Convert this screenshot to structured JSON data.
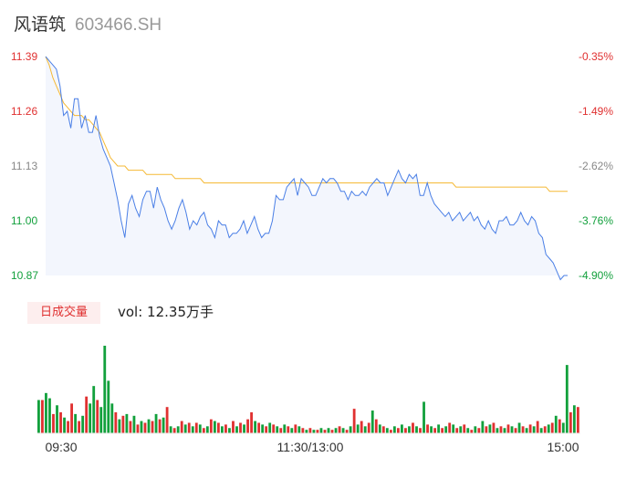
{
  "stock": {
    "name": "风语筑",
    "code": "603466.SH"
  },
  "volume_panel": {
    "tab_label": "日成交量",
    "vol_text": "vol: 12.35万手"
  },
  "colors": {
    "price_line": "#4a7fe6",
    "avg_line": "#f5b935",
    "up": "#e03030",
    "down": "#12a03c",
    "fill": "#f3f6fd"
  },
  "chart_data": [
    {
      "type": "line",
      "title": "",
      "y_ticks_left": [
        "11.39",
        "11.26",
        "11.13",
        "11.00",
        "10.87"
      ],
      "y_ticks_right": [
        "-0.35%",
        "-1.49%",
        "-2.62%",
        "-3.76%",
        "-4.90%"
      ],
      "x_ticks": [
        "09:30",
        "11:30/13:00",
        "15:00"
      ],
      "ylim": [
        10.87,
        11.39
      ],
      "grid": false,
      "series": [
        {
          "values": [
            11.39,
            11.38,
            11.37,
            11.36,
            11.32,
            11.25,
            11.26,
            11.22,
            11.29,
            11.29,
            11.22,
            11.25,
            11.21,
            11.21,
            11.25,
            11.2,
            11.17,
            11.15,
            11.13,
            11.09,
            11.05,
            11.0,
            10.96,
            11.04,
            11.06,
            11.03,
            11.01,
            11.05,
            11.07,
            11.07,
            11.03,
            11.08,
            11.05,
            11.03,
            11.0,
            10.98,
            11.0,
            11.03,
            11.05,
            11.02,
            10.98,
            11.0,
            10.99,
            11.01,
            11.02,
            10.99,
            10.98,
            10.96,
            11.0,
            10.99,
            10.99,
            10.96,
            10.97,
            10.97,
            10.98,
            11.0,
            10.97,
            10.99,
            11.01,
            10.98,
            10.96,
            10.97,
            10.97,
            11.0,
            11.06,
            11.05,
            11.05,
            11.08,
            11.09,
            11.1,
            11.06,
            11.1,
            11.09,
            11.08,
            11.06,
            11.06,
            11.08,
            11.1,
            11.09,
            11.1,
            11.1,
            11.09,
            11.07,
            11.07,
            11.05,
            11.07,
            11.06,
            11.06,
            11.07,
            11.06,
            11.08,
            11.09,
            11.1,
            11.09,
            11.09,
            11.06,
            11.08,
            11.1,
            11.12,
            11.1,
            11.09,
            11.11,
            11.1,
            11.11,
            11.06,
            11.06,
            11.09,
            11.06,
            11.04,
            11.03,
            11.02,
            11.01,
            11.02,
            11.0,
            11.01,
            11.02,
            11.0,
            11.01,
            11.02,
            11.0,
            11.01,
            10.99,
            10.98,
            11.0,
            10.98,
            10.97,
            11.0,
            11.0,
            11.01,
            10.99,
            10.99,
            11.0,
            11.02,
            11.0,
            10.99,
            11.01,
            11.0,
            10.97,
            10.96,
            10.92,
            10.91,
            10.9,
            10.88,
            10.86,
            10.87,
            10.87
          ]
        },
        {
          "values": [
            11.39,
            11.37,
            11.34,
            11.32,
            11.3,
            11.28,
            11.27,
            11.26,
            11.25,
            11.25,
            11.25,
            11.24,
            11.24,
            11.23,
            11.22,
            11.21,
            11.19,
            11.17,
            11.15,
            11.14,
            11.13,
            11.13,
            11.13,
            11.12,
            11.12,
            11.12,
            11.12,
            11.12,
            11.11,
            11.11,
            11.11,
            11.11,
            11.11,
            11.11,
            11.11,
            11.11,
            11.1,
            11.1,
            11.1,
            11.1,
            11.1,
            11.1,
            11.1,
            11.1,
            11.09,
            11.09,
            11.09,
            11.09,
            11.09,
            11.09,
            11.09,
            11.09,
            11.09,
            11.09,
            11.09,
            11.09,
            11.09,
            11.09,
            11.09,
            11.09,
            11.09,
            11.09,
            11.09,
            11.09,
            11.09,
            11.09,
            11.09,
            11.09,
            11.09,
            11.09,
            11.09,
            11.09,
            11.09,
            11.09,
            11.09,
            11.09,
            11.09,
            11.09,
            11.09,
            11.09,
            11.09,
            11.09,
            11.09,
            11.09,
            11.09,
            11.09,
            11.09,
            11.09,
            11.09,
            11.09,
            11.09,
            11.09,
            11.09,
            11.09,
            11.09,
            11.09,
            11.09,
            11.09,
            11.09,
            11.09,
            11.09,
            11.09,
            11.09,
            11.09,
            11.09,
            11.09,
            11.09,
            11.09,
            11.09,
            11.09,
            11.09,
            11.09,
            11.09,
            11.09,
            11.08,
            11.08,
            11.08,
            11.08,
            11.08,
            11.08,
            11.08,
            11.08,
            11.08,
            11.08,
            11.08,
            11.08,
            11.08,
            11.08,
            11.08,
            11.08,
            11.08,
            11.08,
            11.08,
            11.08,
            11.08,
            11.08,
            11.08,
            11.08,
            11.08,
            11.08,
            11.07,
            11.07,
            11.07,
            11.07,
            11.07,
            11.07
          ]
        }
      ]
    },
    {
      "type": "bar",
      "title": "",
      "ylim": [
        0,
        100
      ],
      "bars": [
        {
          "v": 38,
          "up": false
        },
        {
          "v": 38,
          "up": true
        },
        {
          "v": 46,
          "up": false
        },
        {
          "v": 40,
          "up": false
        },
        {
          "v": 22,
          "up": true
        },
        {
          "v": 32,
          "up": false
        },
        {
          "v": 24,
          "up": true
        },
        {
          "v": 18,
          "up": false
        },
        {
          "v": 14,
          "up": true
        },
        {
          "v": 34,
          "up": true
        },
        {
          "v": 22,
          "up": false
        },
        {
          "v": 14,
          "up": true
        },
        {
          "v": 20,
          "up": false
        },
        {
          "v": 42,
          "up": true
        },
        {
          "v": 34,
          "up": false
        },
        {
          "v": 54,
          "up": false
        },
        {
          "v": 38,
          "up": true
        },
        {
          "v": 30,
          "up": false
        },
        {
          "v": 100,
          "up": false
        },
        {
          "v": 60,
          "up": false
        },
        {
          "v": 34,
          "up": false
        },
        {
          "v": 24,
          "up": true
        },
        {
          "v": 16,
          "up": false
        },
        {
          "v": 20,
          "up": true
        },
        {
          "v": 22,
          "up": false
        },
        {
          "v": 14,
          "up": true
        },
        {
          "v": 20,
          "up": false
        },
        {
          "v": 10,
          "up": true
        },
        {
          "v": 14,
          "up": false
        },
        {
          "v": 12,
          "up": true
        },
        {
          "v": 16,
          "up": false
        },
        {
          "v": 14,
          "up": true
        },
        {
          "v": 22,
          "up": false
        },
        {
          "v": 16,
          "up": true
        },
        {
          "v": 18,
          "up": false
        },
        {
          "v": 30,
          "up": true
        },
        {
          "v": 8,
          "up": false
        },
        {
          "v": 6,
          "up": true
        },
        {
          "v": 8,
          "up": false
        },
        {
          "v": 14,
          "up": true
        },
        {
          "v": 10,
          "up": false
        },
        {
          "v": 12,
          "up": true
        },
        {
          "v": 8,
          "up": false
        },
        {
          "v": 12,
          "up": true
        },
        {
          "v": 10,
          "up": false
        },
        {
          "v": 6,
          "up": true
        },
        {
          "v": 8,
          "up": false
        },
        {
          "v": 16,
          "up": true
        },
        {
          "v": 14,
          "up": false
        },
        {
          "v": 12,
          "up": true
        },
        {
          "v": 8,
          "up": false
        },
        {
          "v": 10,
          "up": true
        },
        {
          "v": 6,
          "up": false
        },
        {
          "v": 14,
          "up": true
        },
        {
          "v": 8,
          "up": false
        },
        {
          "v": 12,
          "up": true
        },
        {
          "v": 10,
          "up": false
        },
        {
          "v": 16,
          "up": true
        },
        {
          "v": 24,
          "up": true
        },
        {
          "v": 14,
          "up": false
        },
        {
          "v": 12,
          "up": true
        },
        {
          "v": 10,
          "up": false
        },
        {
          "v": 8,
          "up": true
        },
        {
          "v": 12,
          "up": false
        },
        {
          "v": 10,
          "up": true
        },
        {
          "v": 8,
          "up": false
        },
        {
          "v": 6,
          "up": true
        },
        {
          "v": 10,
          "up": false
        },
        {
          "v": 8,
          "up": true
        },
        {
          "v": 6,
          "up": false
        },
        {
          "v": 10,
          "up": true
        },
        {
          "v": 8,
          "up": false
        },
        {
          "v": 6,
          "up": true
        },
        {
          "v": 4,
          "up": false
        },
        {
          "v": 6,
          "up": true
        },
        {
          "v": 4,
          "up": false
        },
        {
          "v": 4,
          "up": true
        },
        {
          "v": 6,
          "up": false
        },
        {
          "v": 4,
          "up": true
        },
        {
          "v": 6,
          "up": false
        },
        {
          "v": 4,
          "up": true
        },
        {
          "v": 6,
          "up": false
        },
        {
          "v": 8,
          "up": true
        },
        {
          "v": 6,
          "up": false
        },
        {
          "v": 4,
          "up": true
        },
        {
          "v": 8,
          "up": false
        },
        {
          "v": 28,
          "up": true
        },
        {
          "v": 10,
          "up": false
        },
        {
          "v": 14,
          "up": true
        },
        {
          "v": 8,
          "up": false
        },
        {
          "v": 12,
          "up": true
        },
        {
          "v": 26,
          "up": false
        },
        {
          "v": 16,
          "up": true
        },
        {
          "v": 10,
          "up": false
        },
        {
          "v": 8,
          "up": true
        },
        {
          "v": 6,
          "up": false
        },
        {
          "v": 4,
          "up": true
        },
        {
          "v": 8,
          "up": false
        },
        {
          "v": 6,
          "up": true
        },
        {
          "v": 10,
          "up": false
        },
        {
          "v": 6,
          "up": true
        },
        {
          "v": 8,
          "up": false
        },
        {
          "v": 12,
          "up": true
        },
        {
          "v": 8,
          "up": false
        },
        {
          "v": 6,
          "up": true
        },
        {
          "v": 36,
          "up": false
        },
        {
          "v": 10,
          "up": true
        },
        {
          "v": 8,
          "up": false
        },
        {
          "v": 6,
          "up": true
        },
        {
          "v": 10,
          "up": false
        },
        {
          "v": 6,
          "up": true
        },
        {
          "v": 8,
          "up": false
        },
        {
          "v": 12,
          "up": true
        },
        {
          "v": 10,
          "up": false
        },
        {
          "v": 6,
          "up": true
        },
        {
          "v": 8,
          "up": false
        },
        {
          "v": 10,
          "up": true
        },
        {
          "v": 6,
          "up": false
        },
        {
          "v": 4,
          "up": true
        },
        {
          "v": 8,
          "up": false
        },
        {
          "v": 6,
          "up": true
        },
        {
          "v": 14,
          "up": false
        },
        {
          "v": 8,
          "up": true
        },
        {
          "v": 10,
          "up": false
        },
        {
          "v": 12,
          "up": true
        },
        {
          "v": 6,
          "up": false
        },
        {
          "v": 8,
          "up": true
        },
        {
          "v": 6,
          "up": false
        },
        {
          "v": 10,
          "up": true
        },
        {
          "v": 8,
          "up": false
        },
        {
          "v": 6,
          "up": true
        },
        {
          "v": 12,
          "up": false
        },
        {
          "v": 8,
          "up": true
        },
        {
          "v": 6,
          "up": false
        },
        {
          "v": 10,
          "up": true
        },
        {
          "v": 8,
          "up": false
        },
        {
          "v": 14,
          "up": true
        },
        {
          "v": 6,
          "up": false
        },
        {
          "v": 8,
          "up": true
        },
        {
          "v": 10,
          "up": false
        },
        {
          "v": 12,
          "up": true
        },
        {
          "v": 20,
          "up": false
        },
        {
          "v": 16,
          "up": true
        },
        {
          "v": 12,
          "up": false
        },
        {
          "v": 78,
          "up": false
        },
        {
          "v": 24,
          "up": true
        },
        {
          "v": 32,
          "up": false
        },
        {
          "v": 30,
          "up": true
        }
      ]
    }
  ]
}
